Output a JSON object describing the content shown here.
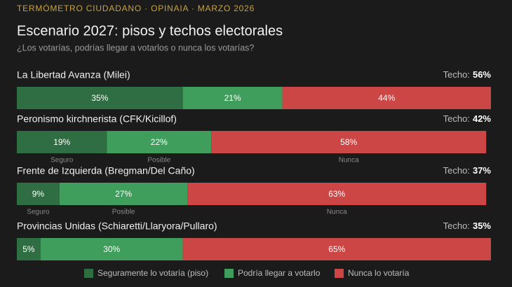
{
  "chart_data": {
    "type": "bar",
    "orientation": "horizontal",
    "stacked": true,
    "kicker": "TERMÓMETRO CIUDADANO · OPINAIA · MARZO 2026",
    "title": "Escenario 2027: pisos y techos electorales",
    "subtitle": "¿Los votarías, podrías llegar a votarlos o nunca los votarías?",
    "categories": [
      "La Libertad Avanza (Milei)",
      "Peronismo kirchnerista (CFK/Kicillof)",
      "Frente de Izquierda (Bregman/Del Caño)",
      "Provincias Unidas (Schiaretti/Llaryora/Pullaro)"
    ],
    "series": [
      {
        "name": "Seguramente lo votaría (piso)",
        "short_name": "Seguro",
        "color": "#2f6e42",
        "values": [
          35,
          19,
          9,
          5
        ],
        "value_labels": [
          "35%",
          "19%",
          "9%",
          "5%"
        ]
      },
      {
        "name": "Podría llegar a votarlo",
        "short_name": "Posible",
        "color": "#3f9e5c",
        "values": [
          21,
          22,
          27,
          30
        ],
        "value_labels": [
          "21%",
          "22%",
          "27%",
          "30%"
        ]
      },
      {
        "name": "Nunca lo votaría",
        "short_name": "Nunca",
        "color": "#cc4646",
        "values": [
          44,
          58,
          63,
          65
        ],
        "value_labels": [
          "44%",
          "58%",
          "63%",
          "65%"
        ]
      }
    ],
    "show_short_names": [
      false,
      true,
      true,
      false
    ],
    "ceiling_label": "Techo:",
    "ceilings": [
      56,
      42,
      37,
      35
    ],
    "ceiling_labels": [
      "56%",
      "42%",
      "37%",
      "35%"
    ],
    "xlim": [
      0,
      100
    ]
  }
}
